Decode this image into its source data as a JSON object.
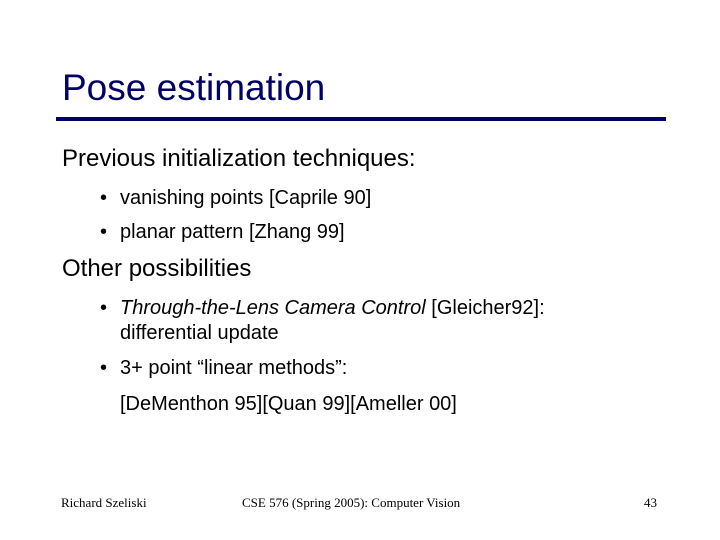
{
  "slide": {
    "title": "Pose estimation",
    "colors": {
      "title": "#000066",
      "rule": "#000066",
      "text": "#000000",
      "background": "#ffffff"
    },
    "sections": [
      {
        "heading": "Previous initialization techniques:",
        "bullets": [
          {
            "marker": "•",
            "text": "vanishing points [Caprile 90]"
          },
          {
            "marker": "•",
            "text": "planar pattern [Zhang 99]"
          }
        ]
      },
      {
        "heading": "Other possibilities",
        "bullets": [
          {
            "marker": "•",
            "italic": "Through-the-Lens Camera Control",
            "text": " [Gleicher92]:",
            "continuation": "differential update"
          },
          {
            "marker": "•",
            "text": "3+ point “linear methods”:",
            "continuation": "[DeMenthon 95][Quan 99][Ameller 00]"
          }
        ]
      }
    ]
  },
  "footer": {
    "author": "Richard Szeliski",
    "course": "CSE 576 (Spring 2005): Computer Vision",
    "page_number": "43"
  }
}
